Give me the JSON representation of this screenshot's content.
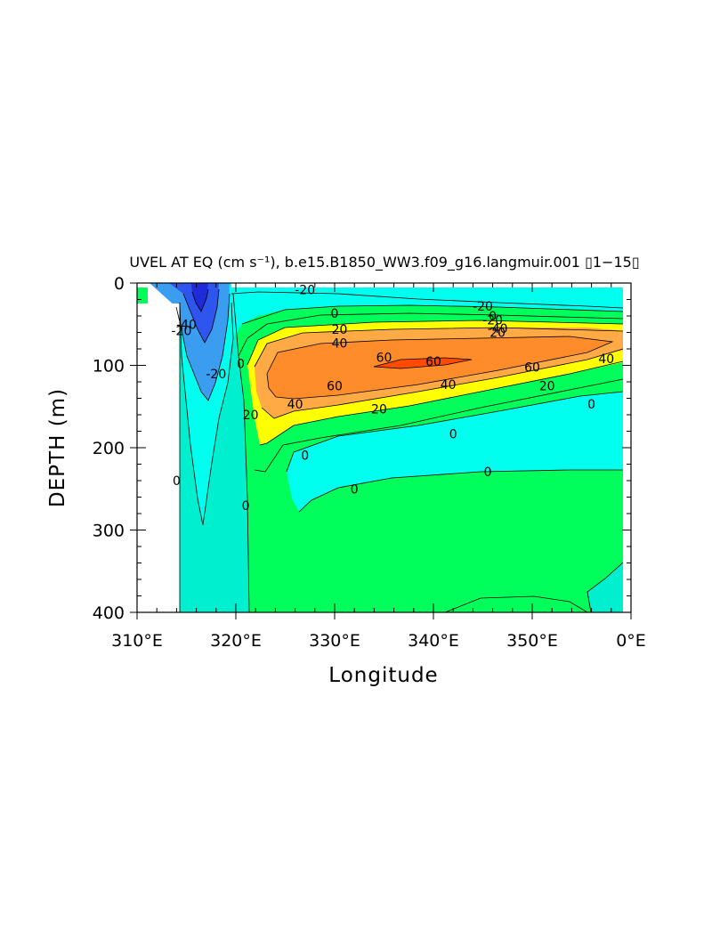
{
  "chart_data": {
    "type": "heatmap",
    "subtype": "filled-contour depth-longitude section",
    "title": "UVEL AT EQ (cm s⁻¹), b.e15.B1850_WW3.f09_g16.langmuir.001 ▯1−15▯",
    "xlabel": "Longitude",
    "ylabel": "DEPTH (m)",
    "x_ticks": [
      "310°E",
      "320°E",
      "330°E",
      "340°E",
      "350°E",
      "0°E"
    ],
    "x_tick_values": [
      310,
      320,
      330,
      340,
      350,
      360
    ],
    "y_ticks": [
      "0",
      "100",
      "200",
      "300",
      "400"
    ],
    "y_tick_values": [
      0,
      100,
      200,
      300,
      400
    ],
    "xlim": [
      310,
      360
    ],
    "ylim": [
      400,
      0
    ],
    "contour_levels": [
      -60,
      -40,
      -20,
      0,
      20,
      40,
      60
    ],
    "colors": {
      "lt_-60": "#1f2ad8",
      "-60_-40": "#2e55ee",
      "-40_-20": "#3b9df0",
      "-20_0": "#00ffee",
      "0_20": "#00ff5a",
      "20_40": "#ffff00",
      "40_60": "#ffa640",
      "gt_60": "#ff4a00",
      "zero_line_band": "#00f0cf"
    },
    "regions": [
      {
        "name": "surface westward flow",
        "sign": "negative",
        "x_range": [
          314,
          360
        ],
        "depth_range": [
          5,
          40
        ],
        "approx_value": -20
      },
      {
        "name": "Equatorial Undercurrent core",
        "sign": "positive",
        "x_range": [
          322,
          359
        ],
        "depth_range": [
          55,
          175
        ],
        "max_value": 70,
        "core_x": 340,
        "core_depth": 100
      },
      {
        "name": "western boundary jet",
        "sign": "negative",
        "x_range": [
          314,
          321
        ],
        "depth_range": [
          5,
          290
        ],
        "min_value": -60,
        "core_x": 316.5,
        "core_depth": 25
      },
      {
        "name": "intermediate westward flow",
        "sign": "negative",
        "x_range": [
          326,
          359
        ],
        "depth_range": [
          130,
          280
        ],
        "approx_value": -5
      },
      {
        "name": "deep eastward flow",
        "sign": "positive",
        "x_range": [
          321,
          359
        ],
        "depth_range": [
          225,
          400
        ],
        "approx_value": 5
      }
    ],
    "contour_labels": [
      {
        "text": "-20",
        "x": 327,
        "depth": 8
      },
      {
        "text": "-20",
        "x": 345,
        "depth": 28
      },
      {
        "text": "0",
        "x": 330,
        "depth": 37
      },
      {
        "text": "-20",
        "x": 346,
        "depth": 45
      },
      {
        "text": "0",
        "x": 346,
        "depth": 40
      },
      {
        "text": "20",
        "x": 330.5,
        "depth": 56
      },
      {
        "text": "-40",
        "x": 346.5,
        "depth": 55
      },
      {
        "text": "20",
        "x": 346.5,
        "depth": 60
      },
      {
        "text": "40",
        "x": 330.5,
        "depth": 73
      },
      {
        "text": "60",
        "x": 335,
        "depth": 90
      },
      {
        "text": "60",
        "x": 340,
        "depth": 95
      },
      {
        "text": "60",
        "x": 350,
        "depth": 102
      },
      {
        "text": "40",
        "x": 357.5,
        "depth": 92
      },
      {
        "text": "60",
        "x": 330,
        "depth": 125
      },
      {
        "text": "40",
        "x": 341.5,
        "depth": 123
      },
      {
        "text": "20",
        "x": 351.5,
        "depth": 125
      },
      {
        "text": "40",
        "x": 326,
        "depth": 147
      },
      {
        "text": "20",
        "x": 334.5,
        "depth": 153
      },
      {
        "text": "0",
        "x": 356,
        "depth": 147
      },
      {
        "text": "0",
        "x": 342,
        "depth": 183
      },
      {
        "text": "0",
        "x": 327,
        "depth": 209
      },
      {
        "text": "0",
        "x": 345.5,
        "depth": 229
      },
      {
        "text": "0",
        "x": 332,
        "depth": 250
      },
      {
        "text": "0",
        "x": 320.5,
        "depth": 98
      },
      {
        "text": "-20",
        "x": 318,
        "depth": 110
      },
      {
        "text": "20",
        "x": 321.5,
        "depth": 160
      },
      {
        "text": "0",
        "x": 321,
        "depth": 270
      },
      {
        "text": "-20",
        "x": 314.5,
        "depth": 58
      },
      {
        "text": "-40",
        "x": 315,
        "depth": 50
      },
      {
        "text": "0",
        "x": 314,
        "depth": 240
      }
    ]
  }
}
